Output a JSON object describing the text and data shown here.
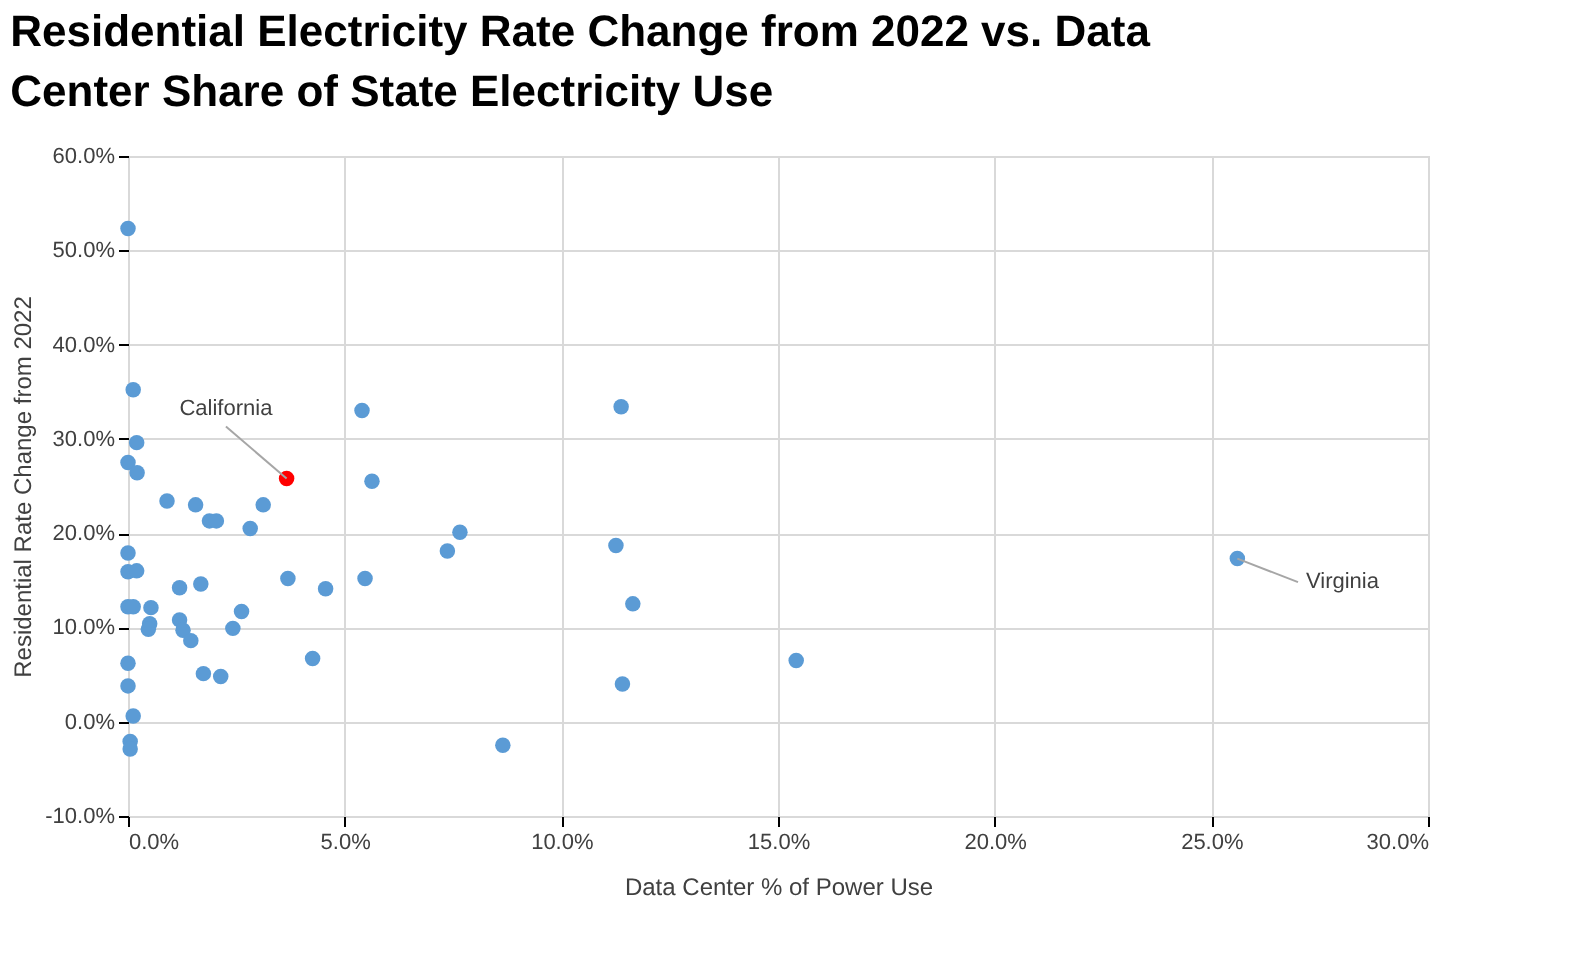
{
  "chart_data": {
    "type": "scatter",
    "title": "Residential Electricity Rate Change from 2022 vs. Data Center Share of State Electricity Use",
    "xlabel": "Data Center % of Power Use",
    "ylabel": "Residential Rate Change from 2022",
    "x": [
      0,
      0.12,
      0.2,
      0,
      0.21,
      5.4,
      5.63,
      3.66,
      0.9,
      1.56,
      3.12,
      1.88,
      2.04,
      2.82,
      7.37,
      7.66,
      0,
      0,
      0.2,
      3.69,
      4.56,
      5.47,
      1.19,
      1.68,
      0,
      0.12,
      0.53,
      0.5,
      0.47,
      1.19,
      1.27,
      1.45,
      2.62,
      2.42,
      4.26,
      1.74,
      2.14,
      0,
      0,
      0.12,
      0.05,
      0.05,
      11.26,
      11.65,
      11.41,
      11.38,
      8.65,
      25.6,
      15.42
    ],
    "values": [
      52.3,
      35.2,
      29.6,
      27.5,
      26.4,
      33.0,
      25.5,
      25.8,
      23.4,
      23.0,
      23.0,
      21.3,
      21.3,
      20.5,
      18.1,
      20.1,
      17.9,
      15.9,
      16.0,
      15.2,
      14.1,
      15.2,
      14.2,
      14.6,
      12.2,
      12.2,
      12.1,
      10.4,
      9.8,
      10.8,
      9.7,
      8.6,
      11.7,
      9.9,
      6.7,
      5.1,
      4.8,
      6.2,
      3.8,
      0.6,
      -2.1,
      -2.9,
      18.7,
      12.5,
      4.0,
      33.4,
      -2.5,
      17.3,
      6.5
    ],
    "colors": [
      "#5b9bd5",
      "#5b9bd5",
      "#5b9bd5",
      "#5b9bd5",
      "#5b9bd5",
      "#5b9bd5",
      "#5b9bd5",
      "#ff0000",
      "#5b9bd5",
      "#5b9bd5",
      "#5b9bd5",
      "#5b9bd5",
      "#5b9bd5",
      "#5b9bd5",
      "#5b9bd5",
      "#5b9bd5",
      "#5b9bd5",
      "#5b9bd5",
      "#5b9bd5",
      "#5b9bd5",
      "#5b9bd5",
      "#5b9bd5",
      "#5b9bd5",
      "#5b9bd5",
      "#5b9bd5",
      "#5b9bd5",
      "#5b9bd5",
      "#5b9bd5",
      "#5b9bd5",
      "#5b9bd5",
      "#5b9bd5",
      "#5b9bd5",
      "#5b9bd5",
      "#5b9bd5",
      "#5b9bd5",
      "#5b9bd5",
      "#5b9bd5",
      "#5b9bd5",
      "#5b9bd5",
      "#5b9bd5",
      "#5b9bd5",
      "#5b9bd5",
      "#5b9bd5",
      "#5b9bd5",
      "#5b9bd5",
      "#5b9bd5",
      "#5b9bd5",
      "#5b9bd5",
      "#5b9bd5"
    ],
    "annotations": [
      {
        "text": "California",
        "x": 3.66,
        "y": 25.8
      },
      {
        "text": "Virginia",
        "x": 25.6,
        "y": 17.3
      }
    ],
    "xlim": [
      0,
      30
    ],
    "xticks": [
      {
        "value": 0,
        "label": "0.0%"
      },
      {
        "value": 5,
        "label": "5.0%"
      },
      {
        "value": 10,
        "label": "10.0%"
      },
      {
        "value": 15,
        "label": "15.0%"
      },
      {
        "value": 20,
        "label": "20.0%"
      },
      {
        "value": 25,
        "label": "25.0%"
      },
      {
        "value": 30,
        "label": "30.0%"
      }
    ],
    "ylim": [
      -10,
      60
    ],
    "yticks": [
      {
        "value": -10,
        "label": "-10.0%"
      },
      {
        "value": 0,
        "label": "0.0%"
      },
      {
        "value": 10,
        "label": "10.0%"
      },
      {
        "value": 20,
        "label": "20.0%"
      },
      {
        "value": 30,
        "label": "30.0%"
      },
      {
        "value": 40,
        "label": "40.0%"
      },
      {
        "value": 50,
        "label": "50.0%"
      },
      {
        "value": 60,
        "label": "60.0%"
      }
    ],
    "grid": true,
    "marker": "circle"
  }
}
